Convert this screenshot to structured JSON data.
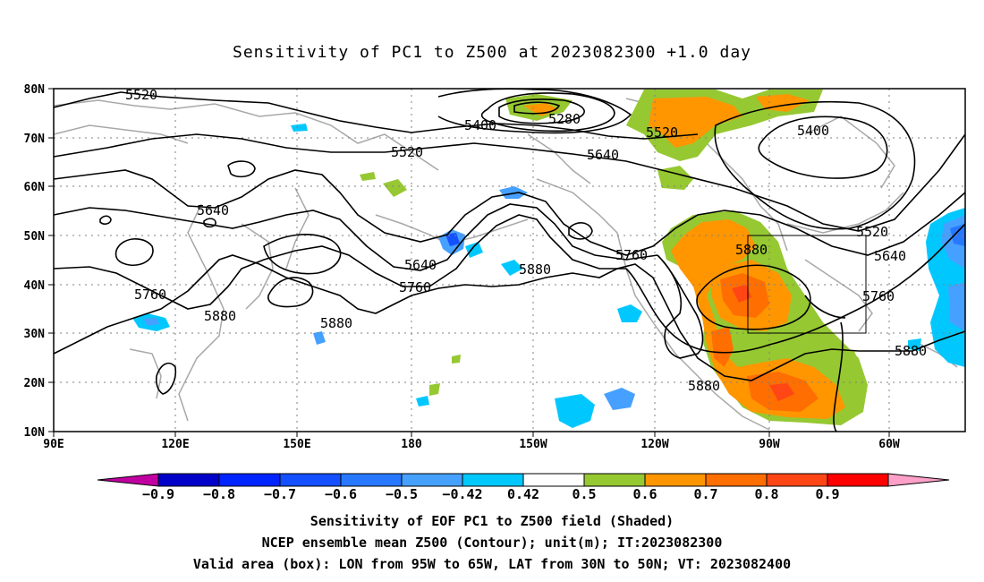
{
  "title": "Sensitivity of PC1 to Z500 at 2023082300 +1.0 day",
  "lat_labels": [
    "80N",
    "70N",
    "60N",
    "50N",
    "40N",
    "30N",
    "20N",
    "10N"
  ],
  "lon_labels": [
    "90E",
    "120E",
    "150E",
    "180",
    "150W",
    "120W",
    "90W",
    "60W"
  ],
  "contour_labels": [
    "5520",
    "5400",
    "5280",
    "5520",
    "5400",
    "5520",
    "5640",
    "5640",
    "5520",
    "5640",
    "5760",
    "5880",
    "5640",
    "5760",
    "5880",
    "5760",
    "5880",
    "5880",
    "5760",
    "5880",
    "5880"
  ],
  "colorbar": {
    "colors": [
      "#c000a0",
      "#0000c8",
      "#0024ff",
      "#1450ff",
      "#2878ff",
      "#46a0ff",
      "#00c8ff",
      "#ffffff",
      "#96c832",
      "#ff9600",
      "#ff6e00",
      "#ff4614",
      "#ff0000",
      "#ffa0c8"
    ],
    "tick_labels": [
      "−0.9",
      "−0.8",
      "−0.7",
      "−0.6",
      "−0.5",
      "−0.42",
      "0.42",
      "0.5",
      "0.6",
      "0.7",
      "0.8",
      "0.9"
    ]
  },
  "captions": [
    "Sensitivity of EOF PC1 to Z500 field (Shaded)",
    "NCEP ensemble mean Z500 (Contour); unit(m); IT:2023082300",
    "Valid area (box): LON from 95W to 65W, LAT from 30N to 50N; VT: 2023082400"
  ]
}
